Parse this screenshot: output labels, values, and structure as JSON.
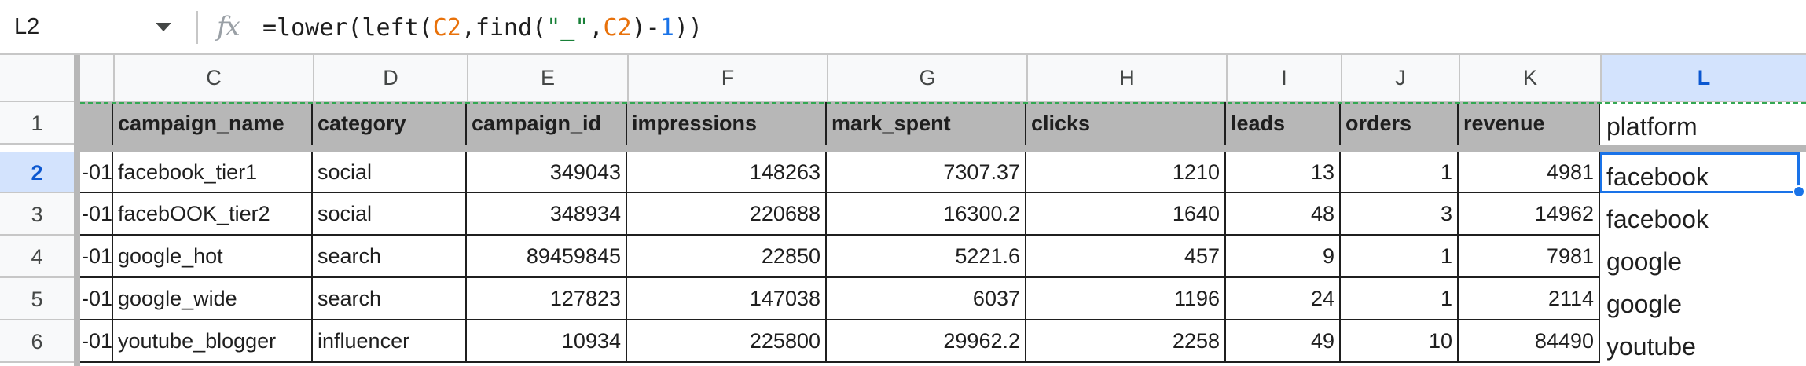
{
  "name_box": {
    "value": "L2"
  },
  "formula": {
    "parts": [
      {
        "text": "=lower(left(",
        "kind": "plain"
      },
      {
        "text": "C2",
        "kind": "ref"
      },
      {
        "text": ",find(",
        "kind": "plain"
      },
      {
        "text": "\"_\"",
        "kind": "str"
      },
      {
        "text": ",",
        "kind": "plain"
      },
      {
        "text": "C2",
        "kind": "ref"
      },
      {
        "text": ")-",
        "kind": "plain"
      },
      {
        "text": "1",
        "kind": "num"
      },
      {
        "text": "))",
        "kind": "plain"
      }
    ]
  },
  "icons": {
    "fx": "fx-icon",
    "dropdown": "chevron-down-icon"
  },
  "colors": {
    "header_fill": "#b7b7b7",
    "active_header": "#d3e3fd",
    "selection": "#1a73e8"
  },
  "columns": [
    "C",
    "D",
    "E",
    "F",
    "G",
    "H",
    "I",
    "J",
    "K",
    "L"
  ],
  "active_column": "L",
  "rows": [
    "1",
    "2",
    "3",
    "4",
    "5",
    "6"
  ],
  "active_row": "2",
  "header_row": [
    "campaign_name",
    "category",
    "campaign_id",
    "impressions",
    "mark_spent",
    "clicks",
    "leads",
    "orders",
    "revenue",
    "platform"
  ],
  "data_rows": [
    {
      "b": "-01",
      "cells": [
        "facebook_tier1",
        "social",
        "349043",
        "148263",
        "7307.37",
        "1210",
        "13",
        "1",
        "4981",
        "facebook"
      ]
    },
    {
      "b": "-01",
      "cells": [
        "facebOOK_tier2",
        "social",
        "348934",
        "220688",
        "16300.2",
        "1640",
        "48",
        "3",
        "14962",
        "facebook"
      ]
    },
    {
      "b": "-01",
      "cells": [
        "google_hot",
        "search",
        "89459845",
        "22850",
        "5221.6",
        "457",
        "9",
        "1",
        "7981",
        "google"
      ]
    },
    {
      "b": "-01",
      "cells": [
        "google_wide",
        "search",
        "127823",
        "147038",
        "6037",
        "1196",
        "24",
        "1",
        "2114",
        "google"
      ]
    },
    {
      "b": "-01",
      "cells": [
        "youtube_blogger",
        "influencer",
        "10934",
        "225800",
        "29962.2",
        "2258",
        "49",
        "10",
        "84490",
        "youtube"
      ]
    }
  ]
}
